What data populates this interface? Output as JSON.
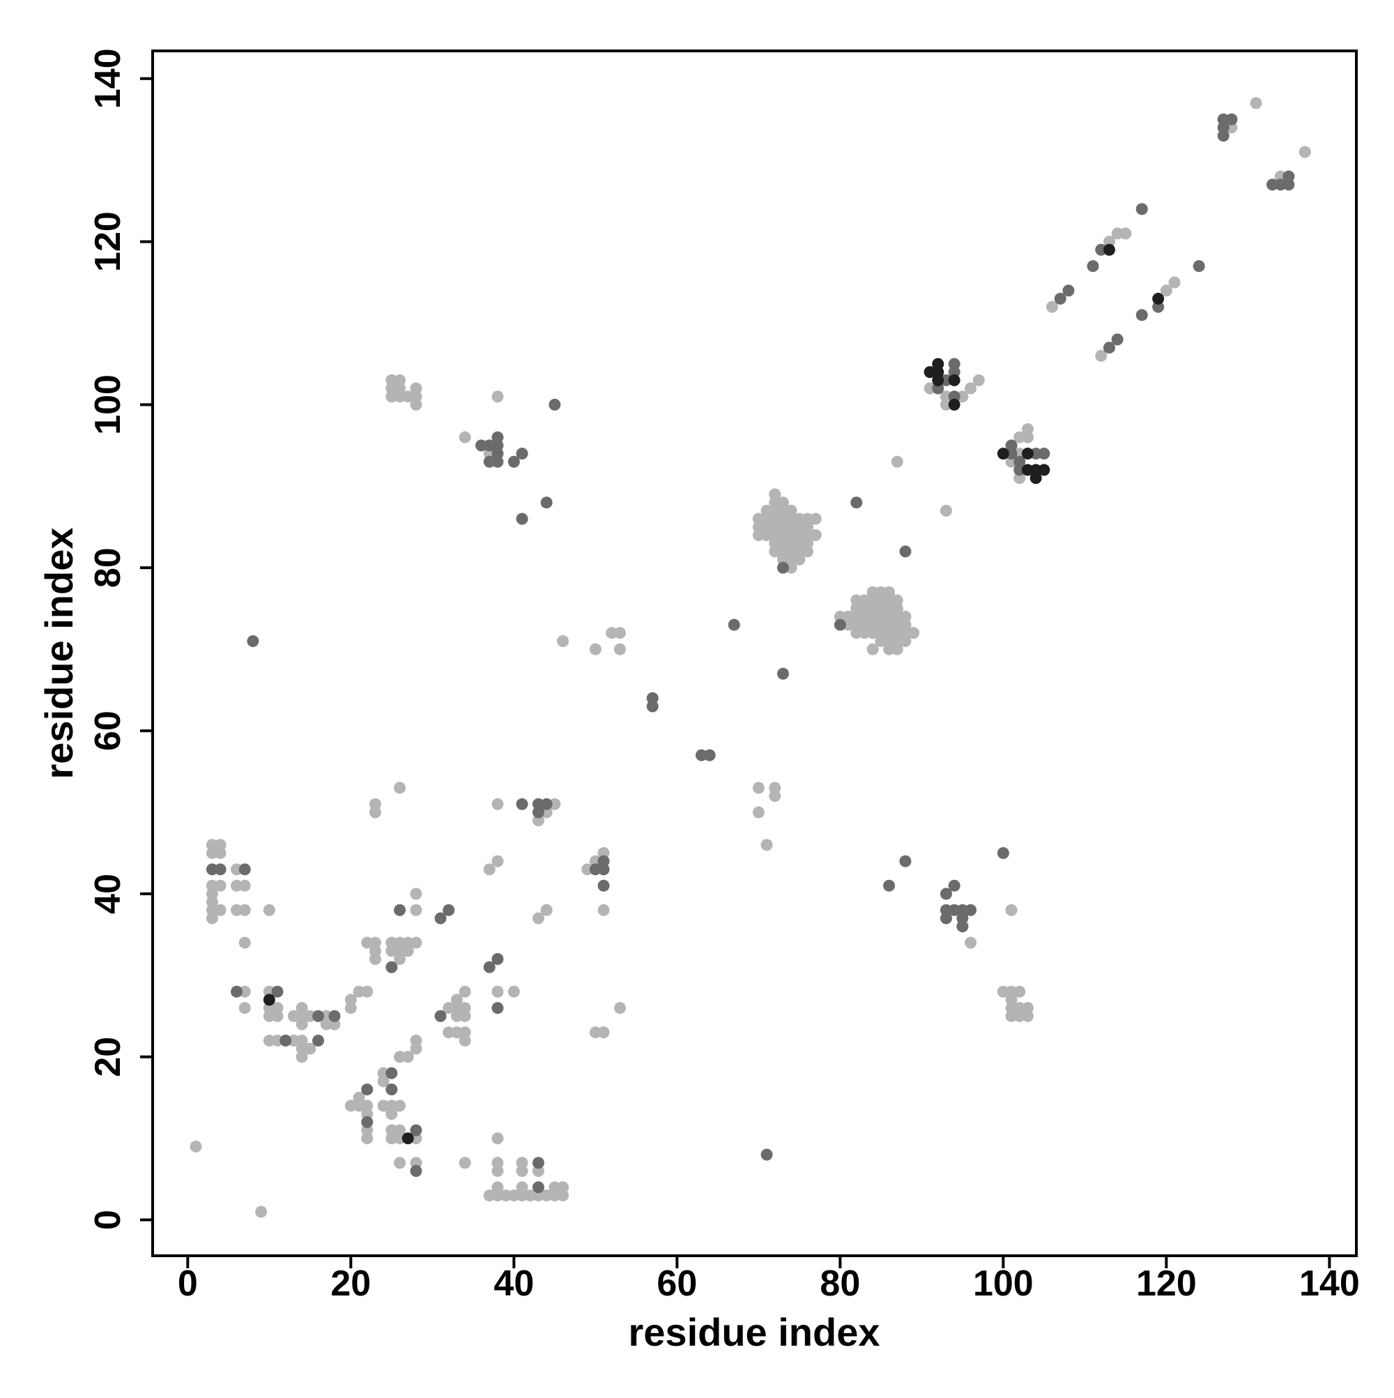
{
  "chart_data": {
    "type": "scatter",
    "x_label": "residue index",
    "y_label": "residue index",
    "xlim": [
      -4.3,
      143.3
    ],
    "ylim": [
      -4.4,
      143.4
    ],
    "xticks": [
      0,
      20,
      40,
      60,
      80,
      100,
      120,
      140
    ],
    "yticks": [
      0,
      20,
      40,
      60,
      80,
      100,
      120,
      140
    ],
    "series": [
      {
        "color": "#b4b4b4",
        "x": [
          131,
          128,
          137,
          134,
          115,
          114,
          113,
          121,
          120,
          106,
          112,
          91,
          93,
          93,
          95,
          96,
          97,
          102,
          102,
          103,
          103,
          102,
          101,
          72,
          72,
          73,
          71,
          72,
          73,
          74,
          70,
          71,
          72,
          73,
          74,
          75,
          76,
          77,
          70,
          71,
          72,
          73,
          74,
          75,
          76,
          70,
          71,
          72,
          73,
          74,
          75,
          76,
          77,
          72,
          73,
          74,
          75,
          76,
          72,
          73,
          74,
          75,
          76,
          73,
          74,
          75,
          74,
          87,
          93,
          84,
          85,
          86,
          82,
          83,
          84,
          85,
          86,
          87,
          82,
          83,
          84,
          85,
          86,
          87,
          80,
          81,
          82,
          83,
          84,
          85,
          86,
          87,
          88,
          81,
          82,
          83,
          84,
          85,
          86,
          87,
          88,
          82,
          83,
          84,
          85,
          86,
          87,
          88,
          89,
          85,
          86,
          87,
          88,
          84,
          86,
          87,
          46,
          50,
          52,
          53,
          53,
          25,
          26,
          25,
          26,
          28,
          25,
          26,
          27,
          28,
          28,
          38,
          34,
          37,
          1,
          9,
          3,
          4,
          3,
          4,
          3,
          4,
          3,
          3,
          3,
          4,
          3,
          6,
          6,
          7,
          6,
          7,
          7,
          10,
          7,
          7,
          10,
          10,
          11,
          10,
          11,
          10,
          11,
          13,
          14,
          14,
          14,
          15,
          13,
          14,
          14,
          14,
          15,
          17,
          17,
          18,
          20,
          20,
          21,
          22,
          22,
          23,
          23,
          23,
          25,
          25,
          26,
          26,
          26,
          27,
          27,
          28,
          28,
          28,
          23,
          23,
          26,
          32,
          33,
          34,
          33,
          34,
          33,
          34,
          32,
          33,
          34,
          34,
          38,
          40,
          37,
          38,
          38,
          45,
          43,
          44,
          43,
          44,
          49,
          50,
          51,
          51,
          50,
          51,
          53,
          20,
          21,
          21,
          22,
          22,
          22,
          22,
          24,
          24,
          24,
          25,
          26,
          25,
          25,
          26,
          25,
          26,
          28,
          26,
          28,
          26,
          27,
          28,
          28,
          34,
          38,
          37,
          38,
          39,
          40,
          41,
          42,
          43,
          44,
          45,
          46,
          38,
          38,
          38,
          41,
          41,
          41,
          43,
          45,
          46,
          70,
          72,
          72,
          70,
          71,
          101,
          96,
          100,
          101,
          102,
          101,
          101,
          102,
          103,
          101,
          102,
          103
        ],
        "values": [
          137,
          134,
          131,
          128,
          121,
          121,
          120,
          115,
          114,
          112,
          106,
          102,
          101,
          100,
          101,
          102,
          103,
          94,
          91,
          97,
          96,
          96,
          93,
          89,
          88,
          88,
          87,
          87,
          87,
          87,
          86,
          86,
          86,
          86,
          86,
          86,
          86,
          86,
          85,
          85,
          85,
          85,
          85,
          85,
          85,
          84,
          84,
          84,
          84,
          84,
          84,
          84,
          84,
          83,
          83,
          83,
          83,
          83,
          82,
          82,
          82,
          82,
          82,
          81,
          81,
          81,
          80,
          93,
          87,
          77,
          77,
          77,
          76,
          76,
          76,
          76,
          76,
          76,
          75,
          75,
          75,
          75,
          75,
          75,
          74,
          74,
          74,
          74,
          74,
          74,
          74,
          74,
          74,
          73,
          73,
          73,
          73,
          73,
          73,
          73,
          73,
          72,
          72,
          72,
          72,
          72,
          72,
          72,
          72,
          71,
          71,
          71,
          71,
          70,
          70,
          70,
          71,
          70,
          72,
          72,
          70,
          103,
          103,
          102,
          102,
          102,
          101,
          101,
          101,
          101,
          100,
          101,
          96,
          94,
          9,
          1,
          46,
          46,
          45,
          45,
          41,
          41,
          40,
          39,
          38,
          38,
          37,
          43,
          41,
          41,
          38,
          38,
          34,
          38,
          28,
          26,
          28,
          26,
          26,
          25,
          25,
          22,
          22,
          22,
          22,
          21,
          20,
          21,
          25,
          26,
          25,
          24,
          25,
          25,
          24,
          24,
          26,
          27,
          28,
          28,
          34,
          34,
          33,
          32,
          33,
          34,
          34,
          33,
          32,
          34,
          33,
          34,
          38,
          40,
          51,
          50,
          53,
          26,
          27,
          28,
          26,
          26,
          25,
          25,
          23,
          23,
          23,
          22,
          28,
          28,
          43,
          44,
          51,
          51,
          49,
          50,
          37,
          38,
          43,
          44,
          45,
          38,
          23,
          23,
          26,
          14,
          15,
          14,
          14,
          13,
          11,
          10,
          18,
          17,
          14,
          14,
          14,
          13,
          11,
          11,
          10,
          10,
          10,
          7,
          7,
          20,
          20,
          21,
          22,
          7,
          10,
          3,
          3,
          3,
          3,
          3,
          3,
          3,
          3,
          3,
          3,
          7,
          6,
          4,
          7,
          6,
          4,
          6,
          4,
          4,
          53,
          53,
          52,
          50,
          46,
          38,
          34,
          28,
          28,
          28,
          27,
          26,
          26,
          26,
          25,
          25,
          25
        ]
      },
      {
        "color": "#6b6b6b",
        "x": [
          127,
          127,
          127,
          128,
          133,
          134,
          135,
          135,
          117,
          112,
          111,
          124,
          119,
          117,
          108,
          107,
          114,
          113,
          92,
          93,
          94,
          94,
          94,
          101,
          101,
          102,
          104,
          105,
          102,
          73,
          82,
          88,
          80,
          67,
          73,
          57,
          57,
          63,
          64,
          8,
          45,
          36,
          37,
          38,
          38,
          38,
          37,
          38,
          40,
          41,
          44,
          41,
          3,
          4,
          7,
          6,
          11,
          12,
          16,
          16,
          18,
          25,
          26,
          31,
          32,
          31,
          37,
          38,
          38,
          41,
          43,
          44,
          43,
          50,
          51,
          51,
          51,
          22,
          22,
          25,
          25,
          28,
          28,
          43,
          43,
          71,
          86,
          88,
          100,
          93,
          94,
          93,
          93,
          94,
          95,
          95,
          95,
          96
        ],
        "values": [
          135,
          134,
          133,
          135,
          127,
          127,
          127,
          128,
          124,
          119,
          117,
          117,
          112,
          111,
          114,
          113,
          108,
          107,
          102,
          103,
          105,
          104,
          101,
          95,
          94,
          92,
          94,
          94,
          93,
          80,
          88,
          82,
          73,
          73,
          67,
          64,
          63,
          57,
          57,
          71,
          100,
          95,
          95,
          96,
          95,
          94,
          93,
          93,
          93,
          94,
          88,
          86,
          43,
          43,
          43,
          28,
          28,
          22,
          22,
          25,
          25,
          31,
          38,
          37,
          38,
          25,
          31,
          32,
          26,
          51,
          51,
          51,
          50,
          43,
          44,
          43,
          41,
          16,
          12,
          18,
          16,
          11,
          6,
          7,
          4,
          8,
          41,
          44,
          45,
          40,
          41,
          38,
          37,
          38,
          38,
          37,
          36,
          38
        ]
      },
      {
        "color": "#1f1f1f",
        "x": [
          113,
          119,
          91,
          92,
          92,
          94,
          94,
          92,
          100,
          103,
          103,
          104,
          104,
          105,
          10,
          27
        ],
        "values": [
          119,
          113,
          104,
          105,
          104,
          103,
          100,
          103,
          94,
          94,
          92,
          92,
          91,
          92,
          27,
          10
        ]
      }
    ]
  }
}
